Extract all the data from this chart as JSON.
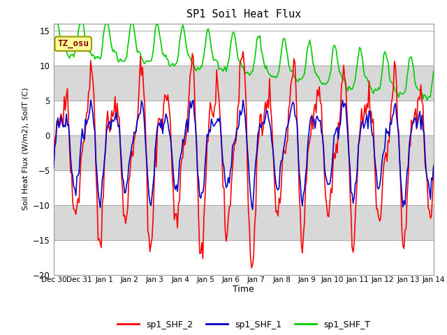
{
  "title": "SP1 Soil Heat Flux",
  "xlabel": "Time",
  "ylabel": "Soil Heat Flux (W/m2), SoilT (C)",
  "ylim": [
    -20,
    16
  ],
  "yticks": [
    -20,
    -15,
    -10,
    -5,
    0,
    5,
    10,
    15
  ],
  "fig_bg_color": "#ffffff",
  "plot_bg_color": "#ffffff",
  "band_color": "#d8d8d8",
  "annotation_text": "TZ_osu",
  "annotation_color": "#8b0000",
  "annotation_bg": "#ffff99",
  "annotation_border": "#999900",
  "colors": {
    "sp1_SHF_2": "#ff0000",
    "sp1_SHF_1": "#0000cc",
    "sp1_SHF_T": "#00cc00"
  },
  "legend_labels": [
    "sp1_SHF_2",
    "sp1_SHF_1",
    "sp1_SHF_T"
  ],
  "xtick_labels": [
    "Dec 30",
    "Dec 31",
    "Jan 1",
    "Jan 2",
    "Jan 3",
    "Jan 4",
    "Jan 5",
    "Jan 6",
    "Jan 7",
    "Jan 8",
    "Jan 9",
    "Jan 10",
    "Jan 11",
    "Jan 12",
    "Jan 13",
    "Jan 14"
  ],
  "num_days": 15
}
